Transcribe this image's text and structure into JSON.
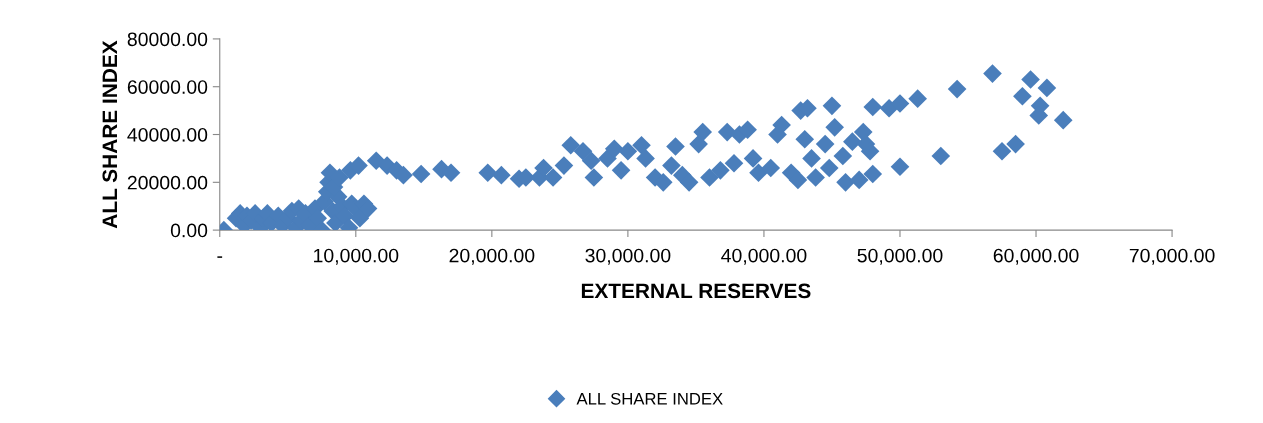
{
  "chart_data": {
    "type": "scatter",
    "xlabel": "EXTERNAL RESERVES",
    "ylabel": "ALL SHARE INDEX",
    "marker": "diamond",
    "legend": "bottom",
    "grid": false,
    "xlim": [
      0,
      70000
    ],
    "xticks": [
      {
        "value": 0,
        "label": "-"
      },
      {
        "value": 10000,
        "label": "10,000.00"
      },
      {
        "value": 20000,
        "label": "20,000.00"
      },
      {
        "value": 30000,
        "label": "30,000.00"
      },
      {
        "value": 40000,
        "label": "40,000.00"
      },
      {
        "value": 50000,
        "label": "50,000.00"
      },
      {
        "value": 60000,
        "label": "60,000.00"
      },
      {
        "value": 70000,
        "label": "70,000.00"
      }
    ],
    "ylim": [
      0,
      80000
    ],
    "yticks": [
      {
        "value": 0,
        "label": "0.00"
      },
      {
        "value": 20000,
        "label": "20000.00"
      },
      {
        "value": 40000,
        "label": "40000.00"
      },
      {
        "value": 60000,
        "label": "60000.00"
      },
      {
        "value": 80000,
        "label": "80000.00"
      }
    ],
    "series": [
      {
        "name": "ALL SHARE INDEX",
        "color": "#4a7ebb",
        "x": [
          300,
          1200,
          1500,
          1800,
          2000,
          2300,
          2600,
          3000,
          3200,
          3500,
          3800,
          4300,
          4600,
          5000,
          5300,
          5600,
          5800,
          6000,
          6300,
          6600,
          7000,
          7200,
          7500,
          7700,
          7900,
          8000,
          8100,
          8300,
          8500,
          8700,
          9000,
          9200,
          9500,
          9700,
          10000,
          10300,
          10600,
          10900,
          8400,
          8800,
          9600,
          10200,
          11500,
          12300,
          13000,
          13500,
          14800,
          16300,
          17000,
          19700,
          20700,
          22000,
          22500,
          23500,
          23800,
          24500,
          25300,
          25800,
          26700,
          27300,
          27500,
          28500,
          29000,
          30000,
          29500,
          31000,
          31300,
          32000,
          32600,
          33200,
          33500,
          34000,
          34500,
          35200,
          35500,
          36000,
          36800,
          37300,
          38200,
          38800,
          37800,
          39200,
          39600,
          40500,
          41300,
          41000,
          42000,
          42500,
          42700,
          43200,
          43000,
          43500,
          43800,
          44500,
          45000,
          44800,
          45200,
          45800,
          46000,
          46500,
          47000,
          47300,
          47500,
          47800,
          48000,
          48000,
          49200,
          50000,
          50000,
          51300,
          53000,
          54200,
          56800,
          57500,
          58500,
          59000,
          59600,
          60300,
          60200,
          60800,
          62000
        ],
        "values": [
          0,
          5000,
          7000,
          2000,
          6000,
          4000,
          7000,
          1000,
          5000,
          7000,
          3000,
          6000,
          2000,
          5000,
          8000,
          1000,
          9000,
          4000,
          7000,
          2000,
          9000,
          5000,
          0,
          12000,
          16000,
          20000,
          24000,
          8000,
          3000,
          14000,
          10000,
          6000,
          1000,
          11000,
          9000,
          5000,
          11000,
          9000,
          18000,
          22000,
          25000,
          27000,
          29000,
          27000,
          25000,
          23000,
          23500,
          25500,
          24000,
          24000,
          23000,
          21500,
          22000,
          22000,
          26000,
          22000,
          27000,
          35500,
          33000,
          29000,
          22000,
          30000,
          34000,
          33000,
          25000,
          35500,
          30000,
          22000,
          20000,
          27000,
          35000,
          23000,
          20000,
          36000,
          41000,
          22000,
          25000,
          41000,
          40000,
          42000,
          28000,
          30000,
          24000,
          26000,
          44000,
          40000,
          24000,
          21000,
          50000,
          51000,
          38000,
          30000,
          22000,
          36000,
          52000,
          26000,
          43000,
          31000,
          20000,
          37000,
          21000,
          41000,
          36000,
          33000,
          23500,
          51500,
          51000,
          53000,
          26500,
          55000,
          31000,
          59000,
          65500,
          33000,
          36000,
          56000,
          63000,
          52000,
          48000,
          59500,
          46000
        ]
      }
    ]
  }
}
